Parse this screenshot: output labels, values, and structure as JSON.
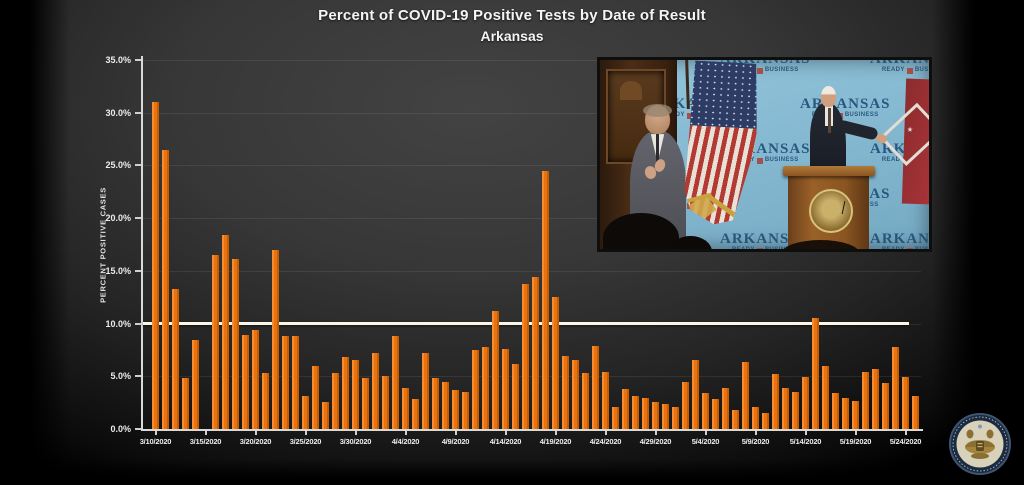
{
  "chart_data": {
    "type": "bar",
    "title": "Percent of COVID-19 Positive Tests by Date of Result",
    "subtitle": "Arkansas",
    "ylabel": "PERCENT POSITIVE CASES",
    "ylim": [
      0,
      35
    ],
    "grid": true,
    "legend": "none",
    "bar_color": "#e8730f",
    "reference_line": {
      "value": 10.0,
      "color": "#fcf6e4"
    },
    "y_tick_labels": [
      "35.0%",
      "30.0%",
      "25.0%",
      "20.0%",
      "15.0%",
      "10.0%",
      "5.0%",
      "0.0%"
    ],
    "x_tick_labels": [
      "3/10/2020",
      "3/15/2020",
      "3/20/2020",
      "3/25/2020",
      "3/30/2020",
      "4/4/2020",
      "4/9/2020",
      "4/14/2020",
      "4/19/2020",
      "4/24/2020",
      "4/29/2020",
      "5/4/2020",
      "5/9/2020",
      "5/14/2020",
      "5/19/2020",
      "5/24/2020"
    ],
    "x_tick_interval": 5,
    "values": [
      31.0,
      26.5,
      13.3,
      4.8,
      8.4,
      0,
      16.5,
      18.4,
      16.1,
      8.9,
      9.4,
      5.3,
      17.0,
      8.8,
      8.8,
      3.1,
      6.0,
      2.6,
      5.3,
      6.8,
      6.5,
      4.8,
      7.2,
      5.0,
      8.8,
      3.9,
      2.8,
      7.2,
      4.8,
      4.5,
      3.7,
      3.5,
      7.5,
      7.8,
      11.2,
      7.6,
      6.2,
      13.8,
      14.4,
      24.5,
      12.5,
      6.9,
      6.5,
      5.3,
      7.9,
      5.4,
      2.1,
      3.8,
      3.1,
      2.9,
      2.6,
      2.4,
      2.1,
      4.5,
      6.5,
      3.4,
      2.8,
      3.9,
      1.8,
      6.4,
      2.1,
      1.5,
      5.2,
      3.9,
      3.5,
      4.9,
      10.5,
      6.0,
      3.4,
      2.9,
      2.7,
      5.4,
      5.7,
      4.4,
      7.8,
      4.9,
      3.1
    ]
  },
  "video_overlay": {
    "backdrop_brand": "ARKANSAS",
    "backdrop_tagline_left": "READY",
    "backdrop_tagline_right": "BUSINESS"
  },
  "colors": {
    "background_center": "#424242",
    "background_edge": "#000000",
    "backdrop_blue": "#8cc2d9",
    "bar_orange": "#e8730f",
    "reference_line_white": "#fcf6e4",
    "seal_gold": "#a3853e"
  }
}
